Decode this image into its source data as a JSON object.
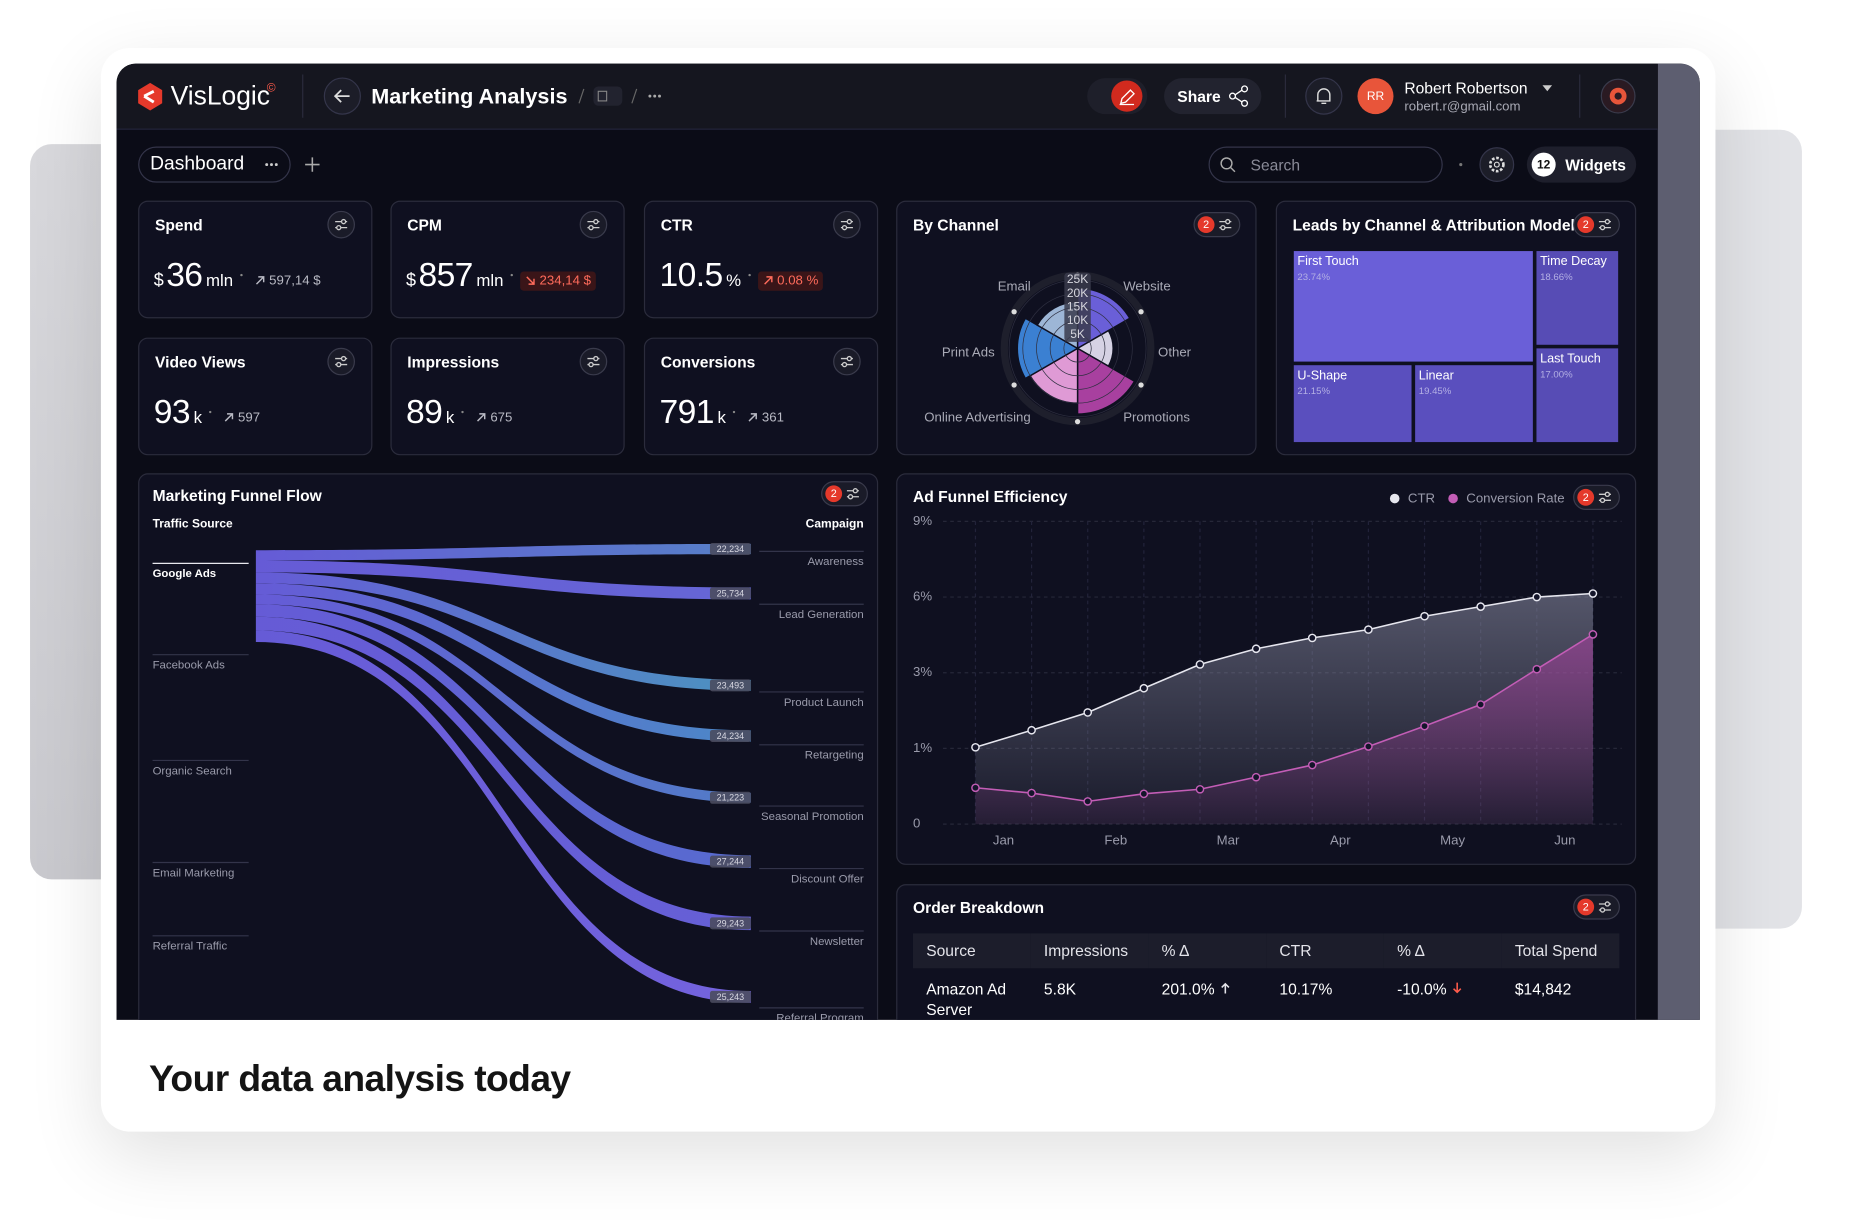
{
  "app": {
    "brand": "VisLogic",
    "brand_mark": "©",
    "page_title": "Marketing Analysis",
    "breadcrumb_count": "1",
    "share": "Share",
    "user": {
      "initials": "RR",
      "name": "Robert Robertson",
      "email": "robert.r@gmail.com"
    }
  },
  "toolbar": {
    "tab": "Dashboard",
    "search_placeholder": "Search",
    "widgets_count": "12",
    "widgets_label": "Widgets"
  },
  "kpis": [
    {
      "title": "Spend",
      "prefix": "$",
      "value": 36,
      "unit": "mln",
      "delta": "597,14 $",
      "trend": "up",
      "tone": "neutral"
    },
    {
      "title": "CPM",
      "prefix": "$",
      "value": 857,
      "unit": "mln",
      "delta": "234,14 $",
      "trend": "down",
      "tone": "negative"
    },
    {
      "title": "CTR",
      "value": 10.5,
      "unit": "%",
      "delta": "0.08 %",
      "trend": "up",
      "tone": "negative"
    },
    {
      "title": "Video Views",
      "value": 93,
      "unit": "k",
      "delta": "597",
      "trend": "up",
      "tone": "neutral"
    },
    {
      "title": "Impressions",
      "value": 89,
      "unit": "k",
      "delta": "675",
      "trend": "up",
      "tone": "neutral"
    },
    {
      "title": "Conversions",
      "value": 791,
      "unit": "k",
      "delta": "361",
      "trend": "up",
      "tone": "neutral"
    }
  ],
  "by_channel": {
    "type": "polar",
    "title": "By Channel",
    "badge": "2",
    "categories": [
      "Website",
      "Other",
      "Promotions",
      "Online Advertising",
      "Print Ads",
      "Email"
    ],
    "values": [
      22000,
      13000,
      24000,
      20000,
      22000,
      17000
    ],
    "colors": [
      "#6a5fd8",
      "#d6d2e4",
      "#a8409f",
      "#df9ad5",
      "#3b80d2",
      "#9db6d6"
    ],
    "rlim": [
      0,
      25000
    ],
    "rticks": [
      {
        "value": 25000,
        "label": "25K"
      },
      {
        "value": 20000,
        "label": "20K"
      },
      {
        "value": 15000,
        "label": "15K"
      },
      {
        "value": 10000,
        "label": "10K"
      },
      {
        "value": 5000,
        "label": "5K"
      }
    ]
  },
  "leads": {
    "type": "treemap",
    "title": "Leads by Channel & Attribution Model",
    "badge": "2",
    "categories": [
      "First Touch",
      "Time Decay",
      "U-Shape",
      "Linear",
      "Last Touch"
    ],
    "values": [
      23.74,
      18.66,
      21.15,
      19.45,
      17.0
    ],
    "value_labels": [
      "23.74%",
      "18.66%",
      "21.15%",
      "19.45%",
      "17.00%"
    ],
    "colors": [
      "#6a5fd8",
      "#574cb5",
      "#5a4fbe",
      "#5a4fbe",
      "#574cb5"
    ]
  },
  "funnel": {
    "type": "sankey",
    "title": "Marketing Funnel Flow",
    "badge": "2",
    "source_header": "Traffic Source",
    "target_header": "Campaign",
    "sources": [
      "Google Ads",
      "Facebook Ads",
      "Organic Search",
      "Email Marketing",
      "Referral Traffic"
    ],
    "targets": [
      "Awareness",
      "Lead Generation",
      "Product Launch",
      "Retargeting",
      "Seasonal Promotion",
      "Discount Offer",
      "Newsletter",
      "Referral Program"
    ],
    "links": [
      {
        "source": "Google Ads",
        "target": "Awareness",
        "value": 22234,
        "label": "22,234",
        "color": "#5a86d0"
      },
      {
        "source": "Google Ads",
        "target": "Lead Generation",
        "value": 25734,
        "label": "25,734",
        "color": "#6a6be0"
      },
      {
        "source": "Google Ads",
        "target": "Product Launch",
        "value": 23493,
        "label": "23,493",
        "color": "#4f9ac8"
      },
      {
        "source": "Google Ads",
        "target": "Retargeting",
        "value": 24234,
        "label": "24,234",
        "color": "#4f8fd0"
      },
      {
        "source": "Google Ads",
        "target": "Seasonal Promotion",
        "value": 21223,
        "label": "21,223",
        "color": "#5582d0"
      },
      {
        "source": "Google Ads",
        "target": "Discount Offer",
        "value": 27244,
        "label": "27,244",
        "color": "#5b70d8"
      },
      {
        "source": "Google Ads",
        "target": "Newsletter",
        "value": 29243,
        "label": "29,243",
        "color": "#6a64e0"
      },
      {
        "source": "Google Ads",
        "target": "Referral Program",
        "value": 25243,
        "label": "25,243",
        "color": "#7a68e8"
      }
    ]
  },
  "efficiency": {
    "type": "line",
    "title": "Ad Funnel Efficiency",
    "badge": "2",
    "x": [
      "Jan",
      null,
      "Feb",
      null,
      "Mar",
      null,
      "Apr",
      null,
      "May",
      null,
      "Jun",
      null
    ],
    "series": [
      {
        "name": "CTR",
        "color": "#e6e6ee",
        "values": [
          1.03,
          1.48,
          1.95,
          2.59,
          3.33,
          3.95,
          4.38,
          4.71,
          5.24,
          5.62,
          6.0,
          6.14
        ]
      },
      {
        "name": "Conversion Rate",
        "color": "#c35db6",
        "values": [
          0.48,
          0.41,
          0.3,
          0.4,
          0.46,
          0.62,
          0.78,
          1.05,
          1.59,
          2.16,
          3.14,
          4.52
        ]
      }
    ],
    "ylim": [
      0,
      9
    ],
    "yticks": [
      {
        "value": 9,
        "label": "9%"
      },
      {
        "value": 6,
        "label": "6%"
      },
      {
        "value": 3,
        "label": "3%"
      },
      {
        "value": 1,
        "label": "1%"
      },
      0
    ],
    "grid": true
  },
  "order": {
    "title": "Order Breakdown",
    "badge": "2",
    "headers": [
      "Source",
      "Impressions",
      "% Δ",
      "CTR",
      "% Δ",
      "Total Spend"
    ],
    "rows": [
      [
        "Amazon Ad Server",
        "5.8K",
        "201.0%",
        "10.17%",
        "-10.0%",
        "$14,842"
      ]
    ],
    "trends": [
      [
        null,
        null,
        "up",
        null,
        "down",
        null
      ]
    ]
  },
  "footer": {
    "caption": "Your data analysis today"
  }
}
